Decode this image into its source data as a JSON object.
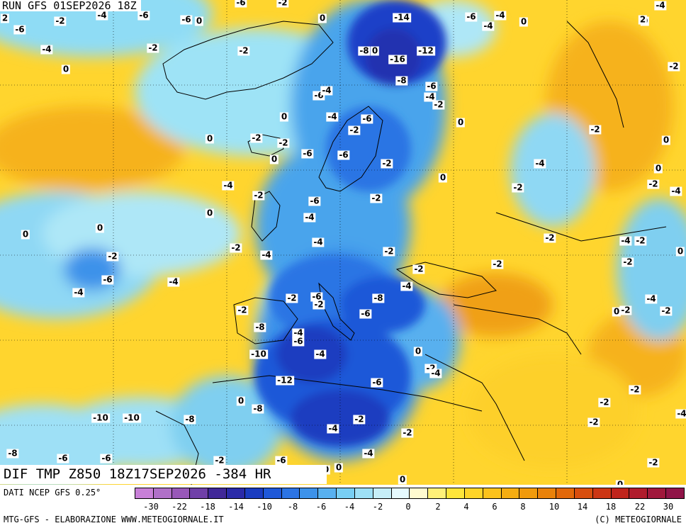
{
  "header": {
    "run_label": "RUN GFS 01SEP2026 18Z"
  },
  "field": {
    "title": "DIF TMP Z850 18Z17SEP2026 -384 HR"
  },
  "footer": {
    "source": "DATI NCEP GFS 0.25°",
    "product": "MTG-GFS - ELABORAZIONE WWW.METEOGIORNALE.IT",
    "copyright": "(C) METEOGIORNALE"
  },
  "colors": {
    "cold_deep": "#1a2fb0",
    "cold": "#2f7fe0",
    "cool": "#7fcff0",
    "neutral": "#e6fbff",
    "warm": "#ffe84a",
    "hot": "#f4b015",
    "background_map": "#ffd52e"
  },
  "legend": {
    "colors": [
      "#c880d8",
      "#b070c8",
      "#9858b8",
      "#7040a8",
      "#402898",
      "#2a2aa8",
      "#1a3cc0",
      "#1f58d8",
      "#2c74e4",
      "#3d92ea",
      "#58b0ef",
      "#78cef3",
      "#9ee0f6",
      "#c6eef8",
      "#e6fbff",
      "#fffbd0",
      "#fff078",
      "#ffe53a",
      "#fed428",
      "#fbc21c",
      "#f5ad12",
      "#f09a0c",
      "#ea820a",
      "#e2680a",
      "#d84e0e",
      "#cc3614",
      "#c0241c",
      "#b01c2c",
      "#a0183c",
      "#901448"
    ],
    "ticks": [
      "-30",
      "-22",
      "-18",
      "-14",
      "-10",
      "-8",
      "-6",
      "-4",
      "-2",
      "0",
      "2",
      "4",
      "6",
      "8",
      "10",
      "14",
      "18",
      "22",
      "30"
    ]
  },
  "contour_labels": [
    "-4",
    "-6",
    "-2",
    "-4",
    "0",
    "-6",
    "-6",
    "0",
    "2",
    "-6",
    "-2",
    "-2",
    "-6",
    "-4",
    "-2",
    "0",
    "0",
    "-2",
    "-2",
    "-14",
    "-4",
    "0",
    "-6",
    "-4",
    "0",
    "2",
    "-4",
    "-8",
    "0",
    "-16",
    "-12",
    "-8",
    "-6",
    "-4",
    "-6",
    "-2",
    "-4",
    "0",
    "-6",
    "-2",
    "-2",
    "0",
    "-2",
    "-4",
    "-6",
    "0",
    "-2",
    "0",
    "-4",
    "-2",
    "0",
    "-2",
    "0",
    "-4",
    "-2",
    "-6",
    "-4",
    "-4",
    "-2",
    "-2",
    "-4",
    "-2",
    "0",
    "0",
    "0",
    "-2",
    "-2",
    "-2",
    "-4",
    "-2",
    "0",
    "-2",
    "-4",
    "-2",
    "-2",
    "0",
    "-4",
    "-2",
    "-4",
    "-6",
    "-4",
    "-6",
    "-2",
    "-8",
    "-6",
    "-4",
    "-2",
    "0",
    "-2",
    "-4",
    "-4",
    "-8",
    "-6",
    "-10",
    "-12",
    "-6",
    "-2",
    "0",
    "-8",
    "-8",
    "-2",
    "-4",
    "-2",
    "-4",
    "-2",
    "-2",
    "-10",
    "-10",
    "-4",
    "-6",
    "-6",
    "-8",
    "-6",
    "0",
    "0",
    "0",
    "-2",
    "-2",
    "-2",
    "0",
    "0",
    "-2",
    "0"
  ]
}
